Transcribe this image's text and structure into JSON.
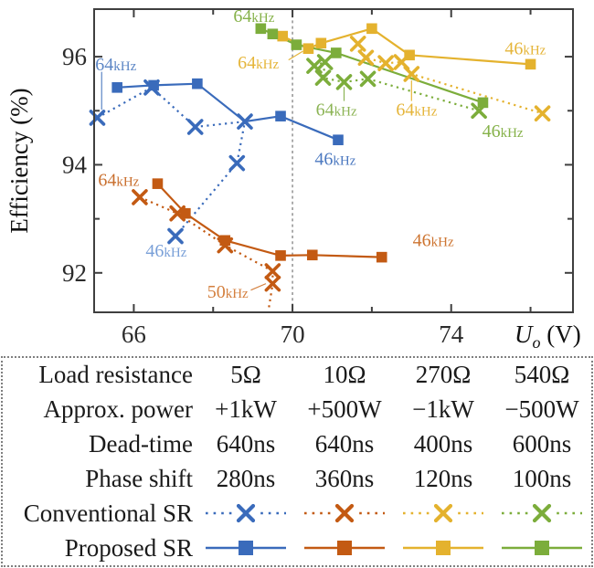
{
  "chart_data": {
    "type": "line",
    "title": "",
    "ylabel": "Efficiency (%)",
    "xlabel": {
      "symbol": "U",
      "subscript": "o",
      "unit": " (V)"
    },
    "xlim": [
      65,
      77.07
    ],
    "ylim": [
      91.27,
      96.88
    ],
    "x_ticks": {
      "major": [
        66,
        70,
        74
      ],
      "minor": [
        68,
        72,
        76
      ]
    },
    "y_ticks": {
      "major": [
        92,
        94,
        96
      ],
      "minor": [
        93,
        95
      ]
    },
    "reference_line_x": 70,
    "grid": false,
    "series": [
      {
        "id": "conventional-sr-5ohm",
        "label": "Conventional SR 5Ω",
        "color": "#3a6bbb",
        "line": "dotted",
        "marker": "x",
        "points": [
          [
            65.08,
            94.87
          ],
          [
            66.45,
            95.43
          ],
          [
            67.55,
            94.7
          ],
          [
            68.8,
            94.8
          ],
          [
            68.6,
            94.03
          ],
          [
            67.05,
            92.68
          ]
        ]
      },
      {
        "id": "conventional-sr-10ohm",
        "label": "Conventional SR 10Ω",
        "color": "#c35a13",
        "line": "dotted",
        "marker": "x",
        "points": [
          [
            66.15,
            93.4
          ],
          [
            67.1,
            93.1
          ],
          [
            68.3,
            92.51
          ],
          [
            69.5,
            92.03
          ],
          [
            69.5,
            91.8
          ],
          [
            69.4,
            91.33,
            0
          ]
        ]
      },
      {
        "id": "conventional-sr-270ohm",
        "label": "Conventional SR 270Ω",
        "color": "#e4b22e",
        "line": "dotted",
        "marker": "x",
        "points": [
          [
            71.65,
            96.24
          ],
          [
            71.85,
            95.98
          ],
          [
            72.35,
            95.88
          ],
          [
            72.75,
            95.9
          ],
          [
            73.0,
            95.68
          ],
          [
            76.3,
            94.95
          ]
        ]
      },
      {
        "id": "conventional-sr-540ohm",
        "label": "Conventional SR 540Ω",
        "color": "#7cad3b",
        "line": "dotted",
        "marker": "x",
        "points": [
          [
            70.55,
            95.83
          ],
          [
            70.82,
            95.9
          ],
          [
            70.77,
            95.61
          ],
          [
            71.3,
            95.53
          ],
          [
            71.9,
            95.59
          ],
          [
            74.7,
            95.0
          ]
        ]
      },
      {
        "id": "proposed-sr-5ohm",
        "label": "Proposed SR 5Ω",
        "color": "#3a6bbb",
        "line": "solid",
        "marker": "square",
        "points": [
          [
            65.58,
            95.43
          ],
          [
            66.5,
            95.47
          ],
          [
            67.6,
            95.5
          ],
          [
            68.8,
            94.8,
            0
          ],
          [
            69.7,
            94.9
          ],
          [
            71.15,
            94.46
          ]
        ]
      },
      {
        "id": "proposed-sr-10ohm",
        "label": "Proposed SR 10Ω",
        "color": "#c35a13",
        "line": "solid",
        "marker": "square",
        "points": [
          [
            66.6,
            93.65
          ],
          [
            67.3,
            93.1
          ],
          [
            68.3,
            92.6
          ],
          [
            69.7,
            92.32
          ],
          [
            70.5,
            92.33
          ],
          [
            72.25,
            92.29
          ]
        ]
      },
      {
        "id": "proposed-sr-270ohm",
        "label": "Proposed SR 270Ω",
        "color": "#e4b22e",
        "line": "solid",
        "marker": "square",
        "points": [
          [
            69.75,
            96.38
          ],
          [
            70.4,
            96.15
          ],
          [
            70.72,
            96.25
          ],
          [
            72.0,
            96.52
          ],
          [
            72.95,
            96.03
          ],
          [
            76.0,
            95.86
          ]
        ]
      },
      {
        "id": "proposed-sr-540ohm",
        "label": "Proposed SR 540Ω",
        "color": "#7cad3b",
        "line": "solid",
        "marker": "square",
        "points": [
          [
            69.2,
            96.52
          ],
          [
            69.5,
            96.42
          ],
          [
            70.1,
            96.22
          ],
          [
            71.1,
            96.07
          ],
          [
            74.8,
            95.15
          ]
        ]
      }
    ],
    "annotations": [
      {
        "num": "64",
        "unit": "kHz",
        "color": "#5c86c5",
        "x": 65.03,
        "y": 95.87,
        "leader": [
          65.19,
          95.72,
          65.19,
          95.02
        ]
      },
      {
        "num": "46",
        "unit": "kHz",
        "color": "#7aa0d8",
        "x": 66.3,
        "y": 92.42
      },
      {
        "num": "46",
        "unit": "kHz",
        "color": "#4c79c0",
        "x": 70.56,
        "y": 94.12
      },
      {
        "num": "64",
        "unit": "kHz",
        "color": "#c96f2e",
        "x": 65.1,
        "y": 93.73
      },
      {
        "num": "50",
        "unit": "kHz",
        "color": "#d4803f",
        "x": 67.85,
        "y": 91.66,
        "leader": [
          68.95,
          91.68,
          69.33,
          91.8
        ]
      },
      {
        "num": "46",
        "unit": "kHz",
        "color": "#cd7430",
        "x": 73.03,
        "y": 92.61
      },
      {
        "num": "64",
        "unit": "kHz",
        "color": "#e5b53a",
        "x": 68.62,
        "y": 95.9,
        "leader": [
          69.9,
          95.94,
          70.26,
          96.1
        ]
      },
      {
        "num": "64",
        "unit": "kHz",
        "color": "#86b24a",
        "x": 68.51,
        "y": 96.76
      },
      {
        "num": "64",
        "unit": "kHz",
        "color": "#8cb455",
        "x": 70.59,
        "y": 95.03,
        "leader": [
          71.3,
          95.18,
          71.3,
          95.44
        ]
      },
      {
        "num": "64",
        "unit": "kHz",
        "color": "#e5b53a",
        "x": 72.61,
        "y": 95.03,
        "leader": [
          73.0,
          95.18,
          73.0,
          95.56
        ]
      },
      {
        "num": "46",
        "unit": "kHz",
        "color": "#e5b53a",
        "x": 75.35,
        "y": 96.16
      },
      {
        "num": "46",
        "unit": "kHz",
        "color": "#86b24a",
        "x": 74.78,
        "y": 94.63
      }
    ]
  },
  "legend_table": {
    "border_color": "#7f7f7f",
    "colors": [
      "#3a6bbb",
      "#c35a13",
      "#e4b22e",
      "#7cad3b"
    ],
    "rows": [
      {
        "label": "Load resistance",
        "values": [
          "5Ω",
          "10Ω",
          "270Ω",
          "540Ω"
        ]
      },
      {
        "label": "Approx. power",
        "values": [
          "+1kW",
          "+500W",
          "−1kW",
          "−500W"
        ]
      },
      {
        "label": "Dead-time",
        "values": [
          "640ns",
          "640ns",
          "400ns",
          "600ns"
        ]
      },
      {
        "label": "Phase shift",
        "values": [
          "280ns",
          "360ns",
          "120ns",
          "100ns"
        ]
      },
      {
        "label": "Conventional SR",
        "marker": "x-dotted"
      },
      {
        "label": "Proposed SR",
        "marker": "square-solid"
      }
    ]
  }
}
